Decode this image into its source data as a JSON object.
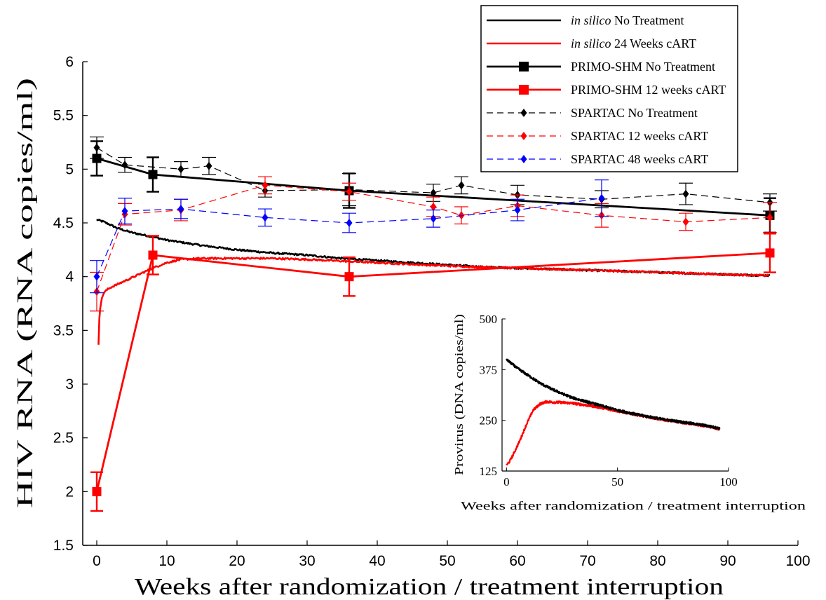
{
  "chart_data": [
    {
      "type": "line",
      "xlabel": "Weeks after randomization / treatment interruption",
      "ylabel": "HIV RNA (RNA copies/ml)",
      "xlim": [
        -2,
        100
      ],
      "ylim": [
        1.5,
        6
      ],
      "xticks": [
        0,
        10,
        20,
        30,
        40,
        50,
        60,
        70,
        80,
        90,
        100
      ],
      "yticks": [
        1.5,
        2,
        2.5,
        3,
        3.5,
        4,
        4.5,
        5,
        5.5,
        6
      ],
      "grid": false,
      "legend": {
        "placement": "top-right",
        "entries": [
          {
            "italic": "in silico",
            "text": " No Treatment",
            "color": "#000000",
            "style": "solid",
            "marker": "none"
          },
          {
            "italic": "in silico",
            "text": " 24 Weeks cART",
            "color": "#ff0000",
            "style": "solid",
            "marker": "none"
          },
          {
            "italic": "",
            "text": "PRIMO-SHM No Treatment",
            "color": "#000000",
            "style": "solid",
            "marker": "square"
          },
          {
            "italic": "",
            "text": "PRIMO-SHM 12 weeks cART",
            "color": "#ff0000",
            "style": "solid",
            "marker": "square"
          },
          {
            "italic": "",
            "text": "SPARTAC No Treatment",
            "color": "#000000",
            "style": "dashed",
            "marker": "diamond"
          },
          {
            "italic": "",
            "text": "SPARTAC 12 weeks cART",
            "color": "#ff0000",
            "style": "dashed",
            "marker": "diamond"
          },
          {
            "italic": "",
            "text": "SPARTAC 48 weeks cART",
            "color": "#0000ff",
            "style": "dashed",
            "marker": "diamond"
          }
        ]
      },
      "series": [
        {
          "name": "in silico No Treatment",
          "color": "#000000",
          "style": "solid",
          "marker": "none",
          "noise": 0.008,
          "x": [
            0,
            1,
            2,
            3,
            5,
            8,
            10,
            15,
            20,
            25,
            30,
            35,
            40,
            45,
            50,
            55,
            60,
            65,
            70,
            75,
            80,
            85,
            90,
            96
          ],
          "y": [
            4.53,
            4.51,
            4.48,
            4.45,
            4.41,
            4.37,
            4.34,
            4.29,
            4.25,
            4.22,
            4.2,
            4.17,
            4.15,
            4.13,
            4.11,
            4.09,
            4.08,
            4.07,
            4.06,
            4.05,
            4.04,
            4.03,
            4.02,
            4.01
          ]
        },
        {
          "name": "in silico 24 Weeks cART",
          "color": "#ff0000",
          "style": "solid",
          "marker": "none",
          "noise": 0.008,
          "x": [
            0.25,
            0.35,
            0.5,
            0.75,
            1,
            1.5,
            2,
            3,
            4,
            5,
            6,
            8,
            10,
            12,
            15,
            20,
            25,
            30,
            40,
            50,
            60,
            70,
            80,
            90,
            96
          ],
          "y": [
            3.37,
            3.6,
            3.72,
            3.8,
            3.85,
            3.88,
            3.9,
            3.93,
            3.96,
            3.99,
            4.02,
            4.08,
            4.13,
            4.16,
            4.17,
            4.17,
            4.17,
            4.16,
            4.13,
            4.1,
            4.08,
            4.06,
            4.04,
            4.02,
            4.01
          ]
        },
        {
          "name": "PRIMO-SHM No Treatment",
          "color": "#000000",
          "style": "solid",
          "marker": "square",
          "x": [
            0,
            8,
            36,
            96
          ],
          "y": [
            5.1,
            4.95,
            4.8,
            4.57
          ],
          "err": [
            0.16,
            0.16,
            0.16,
            0.16
          ]
        },
        {
          "name": "PRIMO-SHM 12 weeks cART",
          "color": "#ff0000",
          "style": "solid",
          "marker": "square",
          "x": [
            0,
            8,
            36,
            96
          ],
          "y": [
            2.0,
            4.2,
            4.0,
            4.22
          ],
          "err": [
            0.18,
            0.18,
            0.18,
            0.18
          ]
        },
        {
          "name": "SPARTAC No Treatment",
          "color": "#000000",
          "style": "dashed",
          "marker": "diamond",
          "x": [
            0,
            4,
            12,
            16,
            24,
            36,
            48,
            52,
            60,
            72,
            84,
            96
          ],
          "y": [
            5.2,
            5.04,
            5.0,
            5.03,
            4.8,
            4.81,
            4.78,
            4.85,
            4.76,
            4.72,
            4.77,
            4.69
          ],
          "err": [
            0.1,
            0.07,
            0.07,
            0.08,
            0.06,
            0.15,
            0.08,
            0.08,
            0.09,
            0.08,
            0.1,
            0.08
          ]
        },
        {
          "name": "SPARTAC 12 weeks cART",
          "color": "#ff0000",
          "style": "dashed",
          "marker": "diamond",
          "x": [
            0,
            4,
            12,
            24,
            36,
            48,
            52,
            60,
            72,
            84,
            96
          ],
          "y": [
            3.86,
            4.58,
            4.62,
            4.85,
            4.79,
            4.65,
            4.57,
            4.66,
            4.57,
            4.51,
            4.55
          ],
          "err": [
            0.18,
            0.1,
            0.1,
            0.08,
            0.08,
            0.09,
            0.08,
            0.1,
            0.11,
            0.08,
            0.14
          ]
        },
        {
          "name": "SPARTAC 48 weeks cART",
          "color": "#0000ff",
          "style": "dashed",
          "marker": "diamond",
          "x": [
            0,
            4,
            12,
            24,
            36,
            48,
            60,
            72
          ],
          "y": [
            4.0,
            4.61,
            4.63,
            4.55,
            4.5,
            4.54,
            4.62,
            4.73
          ],
          "err": [
            0.15,
            0.12,
            0.09,
            0.08,
            0.09,
            0.08,
            0.1,
            0.17
          ]
        }
      ]
    },
    {
      "type": "line",
      "xlabel": "Weeks after randomization / treatment interruption",
      "ylabel": "Provirus (DNA copies/ml)",
      "xlim": [
        -2,
        100
      ],
      "ylim": [
        125,
        500
      ],
      "xticks": [
        0,
        50,
        100
      ],
      "yticks": [
        125,
        250,
        375,
        500
      ],
      "grid": false,
      "series": [
        {
          "name": "in silico No Treatment",
          "color": "#000000",
          "noise": 3,
          "x": [
            0,
            5,
            10,
            15,
            20,
            25,
            30,
            40,
            50,
            60,
            70,
            80,
            90,
            96
          ],
          "y": [
            400,
            378,
            360,
            342,
            328,
            316,
            305,
            290,
            275,
            263,
            253,
            245,
            237,
            230
          ]
        },
        {
          "name": "in silico 24 Weeks cART",
          "color": "#ff0000",
          "noise": 3,
          "x": [
            0,
            1,
            3,
            6,
            9,
            12,
            15,
            18,
            20,
            25,
            30,
            35,
            40,
            50,
            60,
            70,
            80,
            90,
            96
          ],
          "y": [
            140,
            145,
            165,
            200,
            240,
            275,
            290,
            296,
            295,
            294,
            292,
            288,
            284,
            273,
            262,
            252,
            244,
            236,
            228
          ]
        }
      ]
    }
  ]
}
